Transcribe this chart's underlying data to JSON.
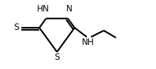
{
  "bg_color": "#ffffff",
  "bond_color": "#000000",
  "text_color": "#000000",
  "line_width": 1.6,
  "font_size": 8.5,
  "figsize": [
    2.19,
    0.97
  ],
  "dpi": 100,
  "xlim": [
    0,
    2.19
  ],
  "ylim": [
    0,
    0.97
  ]
}
